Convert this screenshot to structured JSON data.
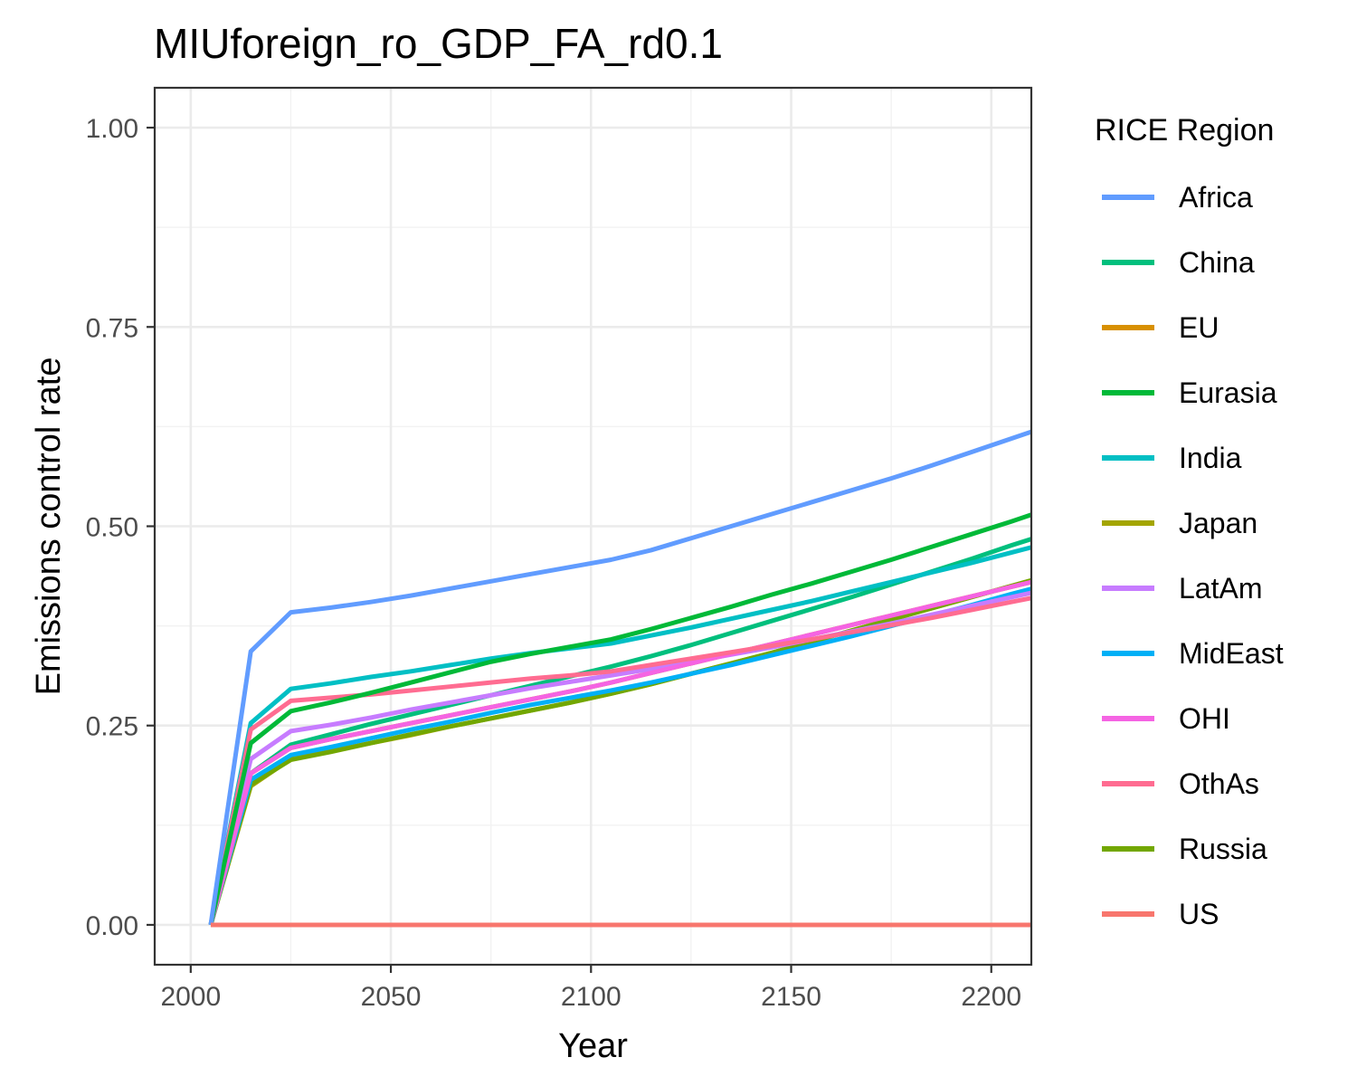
{
  "chart_data": {
    "type": "line",
    "title": "MIUforeign_ro_GDP_FA_rd0.1",
    "xlabel": "Year",
    "ylabel": "Emissions control rate",
    "xlim": [
      1991,
      2210
    ],
    "ylim": [
      -0.05,
      1.05
    ],
    "x_ticks": [
      2000,
      2050,
      2100,
      2150,
      2200
    ],
    "x_tick_labels": [
      "2000",
      "2050",
      "2100",
      "2150",
      "2200"
    ],
    "y_ticks": [
      0,
      0.25,
      0.5,
      0.75,
      1
    ],
    "y_tick_labels": [
      "0.00",
      "0.25",
      "0.50",
      "0.75",
      "1.00"
    ],
    "grid": true,
    "legend_title": "RICE Region",
    "legend_position": "right",
    "x": [
      2005,
      2015,
      2025,
      2035,
      2045,
      2055,
      2065,
      2075,
      2085,
      2095,
      2105,
      2115,
      2125,
      2135,
      2145,
      2155,
      2165,
      2175,
      2185,
      2195,
      2205,
      2215
    ],
    "series": [
      {
        "name": "Africa",
        "color": "#619CFF",
        "values": [
          0,
          0.343,
          0.392,
          0.398,
          0.405,
          0.413,
          0.422,
          0.431,
          0.44,
          0.449,
          0.458,
          0.47,
          0.485,
          0.5,
          0.515,
          0.53,
          0.545,
          0.56,
          0.576,
          0.593,
          0.61,
          0.627
        ]
      },
      {
        "name": "China",
        "color": "#00BF7D",
        "values": [
          0,
          0.19,
          0.226,
          0.239,
          0.252,
          0.264,
          0.276,
          0.288,
          0.3,
          0.312,
          0.324,
          0.337,
          0.351,
          0.366,
          0.381,
          0.396,
          0.411,
          0.427,
          0.443,
          0.459,
          0.476,
          0.492
        ]
      },
      {
        "name": "EU",
        "color": "#D89000",
        "values": [
          0,
          0.19,
          0.222,
          0.233,
          0.243,
          0.253,
          0.263,
          0.273,
          0.283,
          0.293,
          0.304,
          0.316,
          0.328,
          0.34,
          0.352,
          0.364,
          0.376,
          0.388,
          0.4,
          0.412,
          0.424,
          0.436
        ]
      },
      {
        "name": "Eurasia",
        "color": "#00B938",
        "values": [
          0,
          0.228,
          0.268,
          0.279,
          0.291,
          0.304,
          0.317,
          0.33,
          0.34,
          0.349,
          0.358,
          0.371,
          0.385,
          0.399,
          0.414,
          0.428,
          0.443,
          0.458,
          0.474,
          0.49,
          0.506,
          0.523
        ]
      },
      {
        "name": "India",
        "color": "#00BFC4",
        "values": [
          0,
          0.253,
          0.296,
          0.303,
          0.311,
          0.318,
          0.326,
          0.334,
          0.341,
          0.347,
          0.353,
          0.363,
          0.373,
          0.384,
          0.395,
          0.406,
          0.418,
          0.43,
          0.442,
          0.454,
          0.467,
          0.48
        ]
      },
      {
        "name": "Japan",
        "color": "#A3A500",
        "values": [
          0,
          0.174,
          0.208,
          0.218,
          0.228,
          0.238,
          0.249,
          0.259,
          0.269,
          0.279,
          0.29,
          0.302,
          0.315,
          0.328,
          0.341,
          0.355,
          0.369,
          0.383,
          0.397,
          0.411,
          0.425,
          0.439
        ]
      },
      {
        "name": "LatAm",
        "color": "#C77CFF",
        "values": [
          0,
          0.208,
          0.243,
          0.251,
          0.26,
          0.27,
          0.279,
          0.288,
          0.297,
          0.305,
          0.313,
          0.321,
          0.33,
          0.339,
          0.348,
          0.358,
          0.368,
          0.378,
          0.389,
          0.4,
          0.411,
          0.422
        ]
      },
      {
        "name": "MidEast",
        "color": "#00B0F6",
        "values": [
          0,
          0.182,
          0.213,
          0.223,
          0.234,
          0.245,
          0.255,
          0.266,
          0.276,
          0.285,
          0.294,
          0.304,
          0.315,
          0.326,
          0.338,
          0.35,
          0.362,
          0.375,
          0.388,
          0.401,
          0.415,
          0.428
        ]
      },
      {
        "name": "OHI",
        "color": "#F564E3",
        "values": [
          0,
          0.19,
          0.222,
          0.233,
          0.243,
          0.253,
          0.263,
          0.273,
          0.283,
          0.293,
          0.304,
          0.316,
          0.328,
          0.34,
          0.352,
          0.364,
          0.376,
          0.388,
          0.4,
          0.412,
          0.424,
          0.436
        ]
      },
      {
        "name": "OthAs",
        "color": "#FF6C91",
        "values": [
          0,
          0.245,
          0.281,
          0.285,
          0.289,
          0.294,
          0.299,
          0.304,
          0.309,
          0.313,
          0.318,
          0.326,
          0.334,
          0.342,
          0.35,
          0.358,
          0.367,
          0.376,
          0.385,
          0.395,
          0.405,
          0.415
        ]
      },
      {
        "name": "Russia",
        "color": "#72A700",
        "values": [
          0,
          0.176,
          0.207,
          0.217,
          0.228,
          0.239,
          0.249,
          0.259,
          0.269,
          0.279,
          0.29,
          0.302,
          0.315,
          0.328,
          0.341,
          0.355,
          0.369,
          0.383,
          0.397,
          0.411,
          0.425,
          0.439
        ]
      },
      {
        "name": "US",
        "color": "#F8766D",
        "values": [
          0,
          0,
          0,
          0,
          0,
          0,
          0,
          0,
          0,
          0,
          0,
          0,
          0,
          0,
          0,
          0,
          0,
          0,
          0,
          0,
          0,
          0
        ]
      }
    ],
    "draw_order": [
      "Japan",
      "Russia",
      "MidEast",
      "China",
      "EU",
      "LatAm",
      "OHI",
      "India",
      "OthAs",
      "Eurasia",
      "Africa",
      "US"
    ]
  }
}
